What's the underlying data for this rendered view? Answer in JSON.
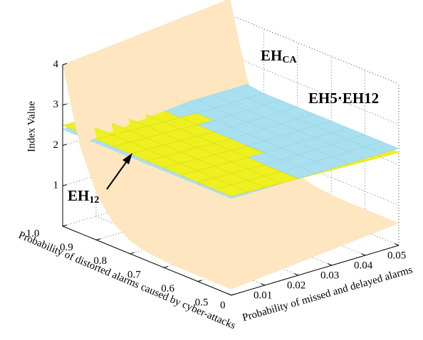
{
  "chart_data": {
    "type": "surface",
    "xlabel": "Probability of missed and delayed alarms",
    "ylabel": "Probability of distorted alarms caused by cyber-attacks",
    "zlabel": "Index Value",
    "x": [
      0,
      0.005,
      0.01,
      0.015,
      0.02,
      0.025,
      0.03,
      0.035,
      0.04,
      0.045,
      0.05
    ],
    "y": [
      0.5,
      0.55,
      0.6,
      0.65,
      0.7,
      0.75,
      0.8,
      0.85,
      0.9,
      0.95,
      1.0
    ],
    "xlim": [
      0,
      0.05
    ],
    "ylim": [
      0.5,
      1
    ],
    "zlim": [
      0,
      4
    ],
    "xticks": [
      0,
      0.01,
      0.02,
      0.03,
      0.04,
      0.05
    ],
    "yticks": [
      0.5,
      0.6,
      0.7,
      0.8,
      0.9,
      {
        "value": 1,
        "label": "1.0"
      }
    ],
    "zticks": [
      1,
      2,
      3,
      4
    ],
    "grid": true,
    "series": [
      {
        "label": "EH",
        "label_sub": "CA",
        "color": "#fde6c0",
        "edge": "#fde6c0",
        "z": [
          [
            0.15,
            0.19,
            0.23,
            0.27,
            0.31,
            0.35,
            0.39,
            0.43,
            0.47,
            0.51,
            0.55
          ],
          [
            0.15,
            0.19,
            0.23,
            0.27,
            0.31,
            0.35,
            0.39,
            0.43,
            0.47,
            0.51,
            0.55
          ],
          [
            0.15,
            0.19,
            0.23,
            0.27,
            0.31,
            0.35,
            0.39,
            0.43,
            0.47,
            0.51,
            0.55
          ],
          [
            0.15,
            0.19,
            0.23,
            0.27,
            0.31,
            0.35,
            0.39,
            0.43,
            0.47,
            0.51,
            0.55
          ],
          [
            0.17,
            0.21,
            0.25,
            0.29,
            0.33,
            0.37,
            0.41,
            0.45,
            0.49,
            0.53,
            0.57
          ],
          [
            0.21,
            0.25,
            0.29,
            0.33,
            0.37,
            0.41,
            0.45,
            0.49,
            0.53,
            0.57,
            0.61
          ],
          [
            0.33,
            0.37,
            0.41,
            0.45,
            0.49,
            0.53,
            0.57,
            0.61,
            0.65,
            0.69,
            0.73
          ],
          [
            0.6,
            0.64,
            0.68,
            0.72,
            0.76,
            0.8,
            0.84,
            0.88,
            0.92,
            0.96,
            1.0
          ],
          [
            1.16,
            1.2,
            1.24,
            1.28,
            1.32,
            1.36,
            1.4,
            1.44,
            1.48,
            1.52,
            1.56
          ],
          [
            2.2,
            2.24,
            2.28,
            2.32,
            2.36,
            2.4,
            2.44,
            2.48,
            2.52,
            2.56,
            2.6
          ],
          [
            4.0,
            4.04,
            4.08,
            4.12,
            4.16,
            4.2,
            4.24,
            4.28,
            4.32,
            4.36,
            4.4
          ]
        ]
      },
      {
        "label": "EH5·EH12",
        "color": "#a9e0f0",
        "edge": "#95cfe2",
        "z": [
          [
            2.4,
            2.4,
            2.4,
            2.4,
            2.4,
            2.4,
            2.4,
            2.4,
            2.4,
            2.4,
            2.4
          ],
          [
            2.4,
            2.4,
            2.4,
            2.4,
            2.4,
            2.4,
            2.4,
            2.4,
            2.4,
            2.4,
            2.4
          ],
          [
            2.4,
            2.4,
            2.4,
            2.4,
            2.4,
            2.4,
            2.4,
            2.4,
            2.4,
            2.4,
            2.4
          ],
          [
            2.4,
            2.4,
            2.4,
            2.4,
            2.4,
            2.4,
            2.4,
            2.4,
            2.4,
            2.4,
            2.4
          ],
          [
            2.4,
            2.4,
            2.4,
            2.4,
            2.4,
            2.4,
            2.4,
            2.4,
            2.4,
            2.4,
            2.4
          ],
          [
            2.4,
            2.4,
            2.4,
            2.4,
            2.4,
            2.4,
            2.4,
            2.4,
            2.4,
            2.4,
            2.4
          ],
          [
            2.4,
            2.4,
            2.4,
            2.4,
            2.4,
            2.4,
            2.4,
            2.4,
            2.4,
            2.4,
            2.4
          ],
          [
            2.4,
            2.4,
            2.4,
            2.4,
            2.4,
            2.4,
            2.4,
            2.4,
            2.4,
            2.4,
            2.4
          ],
          [
            2.4,
            2.4,
            2.4,
            2.4,
            2.4,
            2.4,
            2.4,
            2.4,
            2.4,
            2.4,
            2.4
          ],
          [
            2.4,
            2.4,
            2.4,
            2.4,
            2.4,
            2.4,
            2.45,
            2.45,
            2.45,
            2.45,
            2.45
          ],
          [
            2.4,
            2.4,
            2.4,
            2.4,
            2.4,
            2.4,
            2.45,
            2.45,
            2.45,
            2.45,
            2.45
          ]
        ]
      },
      {
        "label": "EH",
        "label_sub": "12",
        "color": "#eef020",
        "edge": "#d6d810",
        "z": [
          [
            2.45,
            2.435,
            2.42,
            2.405,
            2.39,
            2.375,
            2.36,
            2.345,
            2.33,
            2.315,
            2.3
          ],
          [
            2.455,
            2.44,
            2.425,
            2.41,
            2.395,
            2.38,
            2.365,
            2.35,
            2.335,
            2.32,
            2.305
          ],
          [
            2.46,
            2.445,
            2.43,
            2.415,
            2.4,
            2.385,
            2.37,
            2.355,
            2.34,
            2.325,
            2.31
          ],
          [
            2.465,
            2.45,
            2.435,
            2.42,
            2.405,
            2.39,
            2.375,
            2.36,
            2.345,
            2.33,
            2.315
          ],
          [
            2.47,
            2.455,
            2.44,
            2.425,
            2.41,
            2.395,
            2.38,
            2.365,
            2.35,
            2.335,
            2.32
          ],
          [
            2.475,
            2.46,
            2.445,
            2.43,
            2.415,
            2.4,
            2.385,
            2.37,
            2.355,
            2.34,
            2.325
          ],
          [
            2.48,
            2.465,
            2.45,
            2.435,
            2.42,
            2.405,
            2.39,
            2.375,
            2.36,
            2.345,
            2.33
          ],
          [
            2.485,
            2.47,
            2.455,
            2.44,
            2.425,
            2.41,
            2.395,
            2.38,
            2.365,
            2.35,
            2.335
          ],
          [
            2.49,
            2.475,
            2.46,
            2.445,
            2.43,
            2.415,
            2.4,
            2.385,
            2.37,
            2.355,
            2.34
          ],
          [
            2.495,
            2.48,
            2.465,
            2.45,
            2.435,
            2.42,
            2.405,
            2.39,
            2.375,
            2.36,
            2.345
          ],
          [
            2.5,
            2.485,
            2.47,
            2.455,
            2.44,
            2.425,
            2.41,
            2.395,
            2.38,
            2.365,
            2.35
          ]
        ]
      }
    ]
  }
}
